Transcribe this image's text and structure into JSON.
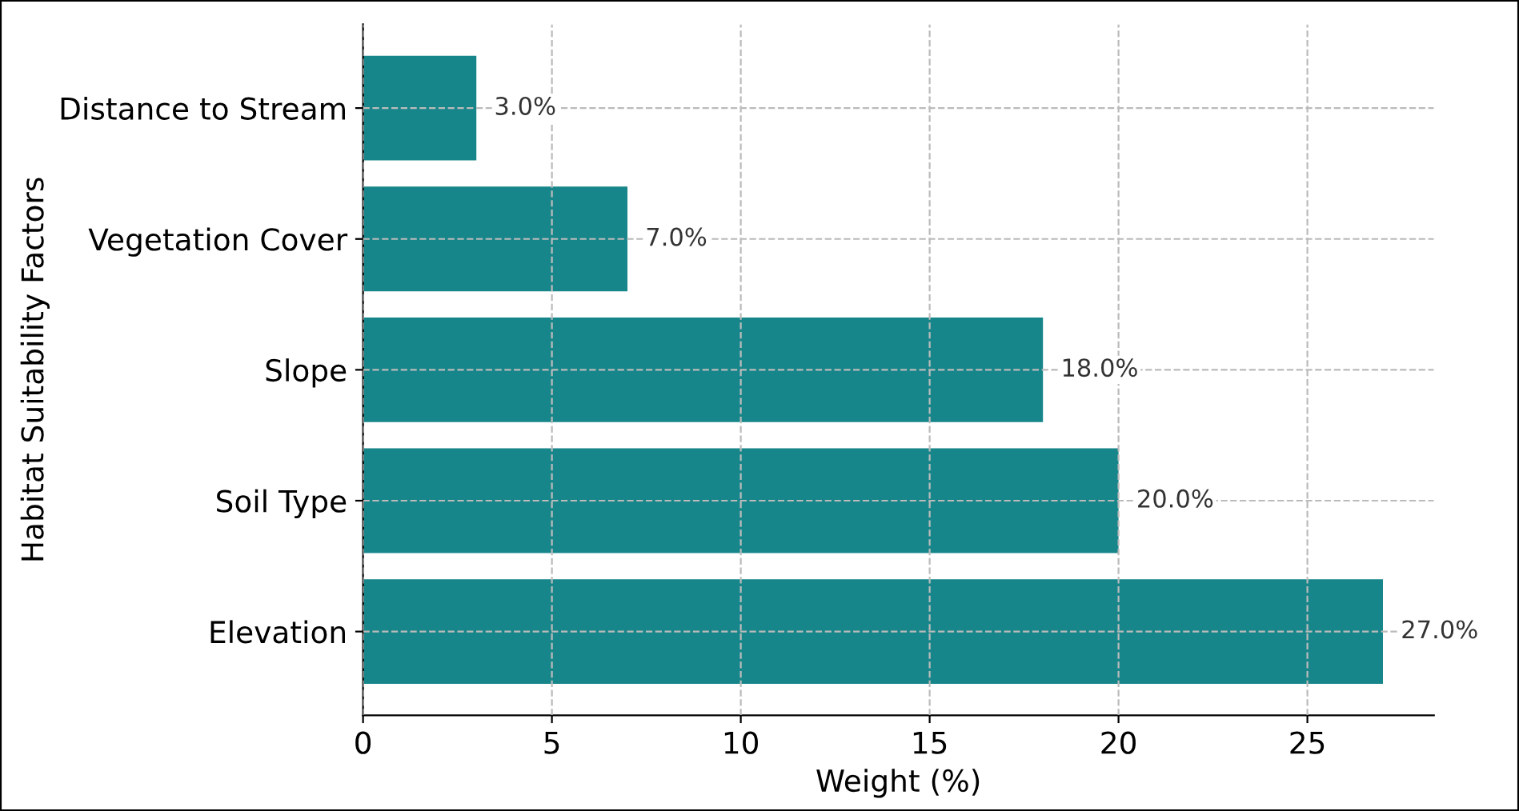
{
  "chart_data": {
    "type": "bar",
    "orientation": "horizontal",
    "xlabel": "Weight (%)",
    "ylabel": "Habitat Suitability Factors",
    "categories": [
      "Distance to Stream",
      "Vegetation Cover",
      "Slope",
      "Soil Type",
      "Elevation"
    ],
    "values": [
      3,
      7,
      18,
      20,
      27
    ],
    "color": "#17868a",
    "value_labels": [
      "3.0%",
      "7.0%",
      "18.0%",
      "20.0%",
      "27.0%"
    ],
    "xlim": [
      0,
      28.35
    ],
    "xticks": [
      0,
      5,
      10,
      15,
      20,
      25
    ],
    "grid": true
  }
}
